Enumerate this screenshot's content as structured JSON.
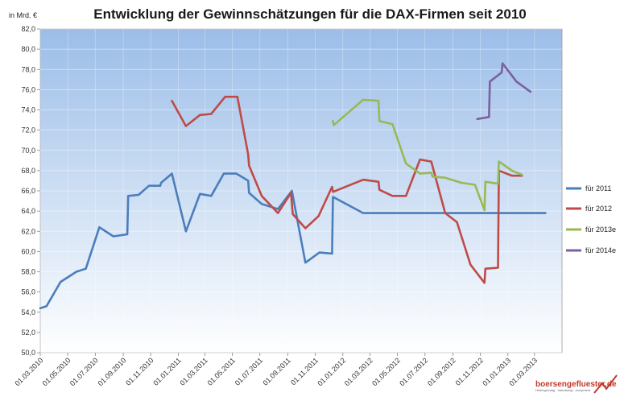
{
  "chart_data": {
    "type": "line",
    "title": "Entwicklung der Gewinnschätzungen für die DAX-Firmen seit 2010",
    "unit_label": "in Mrd.  €",
    "ylim": [
      50,
      82
    ],
    "yticks": [
      "50,0",
      "52,0",
      "54,0",
      "56,0",
      "58,0",
      "60,0",
      "62,0",
      "64,0",
      "66,0",
      "68,0",
      "70,0",
      "72,0",
      "74,0",
      "76,0",
      "78,0",
      "80,0",
      "82,0"
    ],
    "xlim": [
      "2010-03-01",
      "2013-05-01"
    ],
    "xticks": [
      "01.03.2010",
      "01.05.2010",
      "01.07.2010",
      "01.09.2010",
      "01.11.2010",
      "01.01.2011",
      "01.03.2011",
      "01.05.2011",
      "01.07.2011",
      "01.09.2011",
      "01.11.2011",
      "01.01.2012",
      "01.03.2012",
      "01.05.2012",
      "01.07.2012",
      "01.09.2012",
      "01.11.2012",
      "01.01.2013",
      "01.03.2013"
    ],
    "grid": true,
    "legend_position": "right",
    "series": [
      {
        "name": "für 2011",
        "color": "#4a7ebb",
        "points": [
          [
            "2010-03-01",
            54.4
          ],
          [
            "2010-03-15",
            54.6
          ],
          [
            "2010-04-15",
            57.0
          ],
          [
            "2010-05-20",
            58.0
          ],
          [
            "2010-06-10",
            58.3
          ],
          [
            "2010-07-10",
            62.4
          ],
          [
            "2010-08-10",
            61.5
          ],
          [
            "2010-09-10",
            61.7
          ],
          [
            "2010-09-12",
            65.5
          ],
          [
            "2010-10-05",
            65.6
          ],
          [
            "2010-10-28",
            66.5
          ],
          [
            "2010-11-22",
            66.5
          ],
          [
            "2010-11-24",
            66.8
          ],
          [
            "2010-12-18",
            67.7
          ],
          [
            "2011-01-18",
            62.0
          ],
          [
            "2011-02-18",
            65.7
          ],
          [
            "2011-03-15",
            65.5
          ],
          [
            "2011-04-12",
            67.7
          ],
          [
            "2011-05-10",
            67.7
          ],
          [
            "2011-06-05",
            67.0
          ],
          [
            "2011-06-07",
            65.8
          ],
          [
            "2011-07-05",
            64.7
          ],
          [
            "2011-08-10",
            64.2
          ],
          [
            "2011-09-10",
            66.0
          ],
          [
            "2011-10-10",
            58.9
          ],
          [
            "2011-11-10",
            59.9
          ],
          [
            "2011-12-08",
            59.8
          ],
          [
            "2011-12-10",
            65.4
          ],
          [
            "2012-02-15",
            63.8
          ],
          [
            "2013-03-25",
            63.8
          ]
        ]
      },
      {
        "name": "für 2012",
        "color": "#be4b48",
        "points": [
          [
            "2010-12-18",
            74.9
          ],
          [
            "2011-01-18",
            72.4
          ],
          [
            "2011-02-18",
            73.5
          ],
          [
            "2011-03-15",
            73.6
          ],
          [
            "2011-04-15",
            75.3
          ],
          [
            "2011-05-12",
            75.3
          ],
          [
            "2011-06-05",
            69.6
          ],
          [
            "2011-06-07",
            68.5
          ],
          [
            "2011-07-05",
            65.5
          ],
          [
            "2011-08-10",
            63.8
          ],
          [
            "2011-09-08",
            65.8
          ],
          [
            "2011-09-12",
            63.7
          ],
          [
            "2011-10-10",
            62.3
          ],
          [
            "2011-11-08",
            63.5
          ],
          [
            "2011-12-08",
            66.4
          ],
          [
            "2011-12-10",
            65.9
          ],
          [
            "2012-02-15",
            67.1
          ],
          [
            "2012-03-20",
            66.9
          ],
          [
            "2012-03-22",
            66.1
          ],
          [
            "2012-04-20",
            65.5
          ],
          [
            "2012-05-20",
            65.5
          ],
          [
            "2012-06-20",
            69.1
          ],
          [
            "2012-07-15",
            68.9
          ],
          [
            "2012-08-15",
            63.8
          ],
          [
            "2012-09-10",
            62.9
          ],
          [
            "2012-10-10",
            58.7
          ],
          [
            "2012-11-10",
            56.9
          ],
          [
            "2012-11-12",
            58.3
          ],
          [
            "2012-12-10",
            58.4
          ],
          [
            "2012-12-12",
            68.0
          ],
          [
            "2013-01-10",
            67.5
          ],
          [
            "2013-02-01",
            67.5
          ]
        ]
      },
      {
        "name": "für 2013e",
        "color": "#98b954",
        "points": [
          [
            "2011-12-10",
            72.9
          ],
          [
            "2011-12-12",
            72.5
          ],
          [
            "2012-02-15",
            75.0
          ],
          [
            "2012-03-20",
            74.9
          ],
          [
            "2012-03-22",
            72.9
          ],
          [
            "2012-04-20",
            72.6
          ],
          [
            "2012-05-20",
            68.7
          ],
          [
            "2012-06-20",
            67.7
          ],
          [
            "2012-07-15",
            67.8
          ],
          [
            "2012-07-18",
            67.4
          ],
          [
            "2012-08-15",
            67.3
          ],
          [
            "2012-09-20",
            66.8
          ],
          [
            "2012-10-20",
            66.6
          ],
          [
            "2012-11-10",
            64.1
          ],
          [
            "2012-11-12",
            66.9
          ],
          [
            "2012-12-10",
            66.7
          ],
          [
            "2012-12-12",
            68.9
          ],
          [
            "2013-01-10",
            68.0
          ],
          [
            "2013-02-01",
            67.6
          ]
        ]
      },
      {
        "name": "für 2014e",
        "color": "#7d60a0",
        "points": [
          [
            "2012-10-25",
            73.1
          ],
          [
            "2012-11-20",
            73.3
          ],
          [
            "2012-11-22",
            76.8
          ],
          [
            "2012-12-18",
            77.7
          ],
          [
            "2012-12-20",
            78.6
          ],
          [
            "2013-01-20",
            76.8
          ],
          [
            "2013-02-20",
            75.8
          ]
        ]
      }
    ]
  },
  "logo": {
    "name": "boersengefluester.de",
    "tagline": "Hintergründig · hartnäckig · kompetent"
  }
}
